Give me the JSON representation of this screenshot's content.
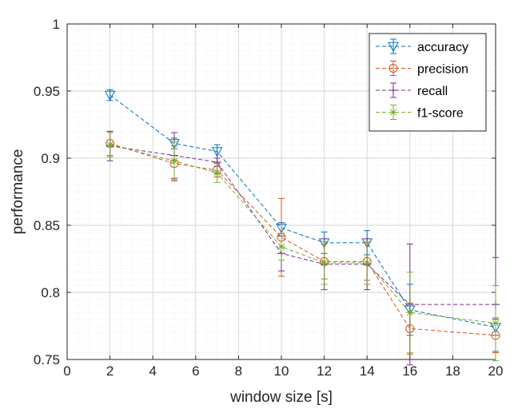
{
  "chart_data": {
    "type": "line",
    "xlabel": "window size [s]",
    "ylabel": "performance",
    "xlim": [
      0,
      20
    ],
    "ylim": [
      0.75,
      1
    ],
    "xticks": [
      0,
      2,
      4,
      6,
      8,
      10,
      12,
      14,
      16,
      18,
      20
    ],
    "yticks": [
      0.75,
      0.8,
      0.85,
      0.9,
      0.95,
      1
    ],
    "ytick_labels": [
      "0.75",
      "0.8",
      "0.85",
      "0.9",
      "0.95",
      "1"
    ],
    "grid": "major and minor (dotted)",
    "legend_position": "top-right",
    "series": [
      {
        "name": "accuracy",
        "color": "#0072BD",
        "marker": "triangle-down",
        "x": [
          2,
          5,
          7,
          10,
          12,
          14,
          16,
          20
        ],
        "y": [
          0.947,
          0.911,
          0.905,
          0.848,
          0.837,
          0.837,
          0.787,
          0.774
        ],
        "err": [
          0.004,
          0.004,
          0.005,
          0.004,
          0.008,
          0.009,
          0.019,
          0.006
        ]
      },
      {
        "name": "precision",
        "color": "#D95319",
        "marker": "circle",
        "x": [
          2,
          5,
          7,
          10,
          12,
          14,
          16,
          20
        ],
        "y": [
          0.911,
          0.896,
          0.891,
          0.841,
          0.823,
          0.823,
          0.773,
          0.768
        ],
        "err": [
          0.009,
          0.013,
          0.005,
          0.029,
          0.013,
          0.014,
          0.019,
          0.013
        ]
      },
      {
        "name": "recall",
        "color": "#7E2F8E",
        "marker": "plus",
        "x": [
          2,
          5,
          7,
          10,
          12,
          14,
          16,
          20
        ],
        "y": [
          0.909,
          0.902,
          0.897,
          0.829,
          0.821,
          0.821,
          0.791,
          0.791
        ],
        "err": [
          0.011,
          0.017,
          0.003,
          0.013,
          0.019,
          0.019,
          0.045,
          0.035
        ]
      },
      {
        "name": "f1-score",
        "color": "#77AC30",
        "marker": "asterisk",
        "x": [
          2,
          5,
          7,
          10,
          12,
          14,
          16,
          20
        ],
        "y": [
          0.91,
          0.898,
          0.889,
          0.834,
          0.822,
          0.822,
          0.785,
          0.777
        ],
        "err": [
          0.009,
          0.014,
          0.007,
          0.01,
          0.016,
          0.016,
          0.03,
          0.028
        ]
      }
    ]
  }
}
